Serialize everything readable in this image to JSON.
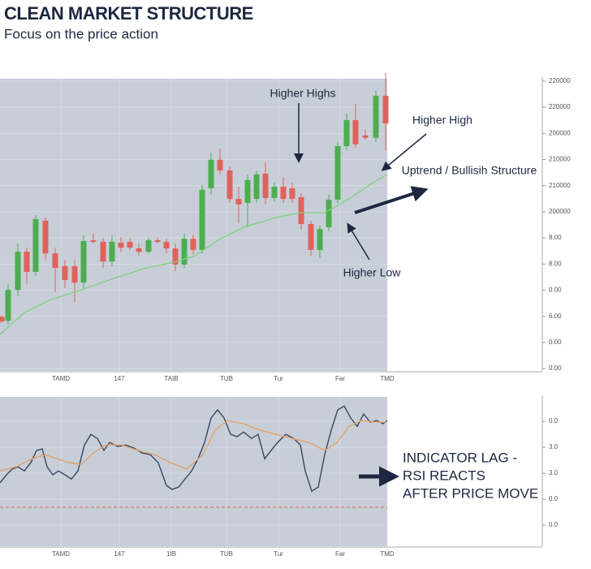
{
  "chart_data": [
    {
      "type": "candlestick",
      "title": "CLEAN MARKET STRUCTURE",
      "subtitle": "Focus on the price action",
      "annotations": [
        "Higher Highs",
        "Higher High",
        "Uptrend / Bullisih Structure",
        "Higher Low"
      ],
      "up_color": "#4cae4f",
      "down_color": "#e0625c",
      "x": [
        2,
        10,
        22,
        33,
        44,
        56,
        68,
        80,
        92,
        103,
        115,
        127,
        138,
        149,
        160,
        171,
        183,
        194,
        205,
        216,
        227,
        238,
        249,
        260,
        271,
        283,
        294,
        305,
        316,
        327,
        338,
        349,
        360,
        371,
        383,
        394,
        405,
        416,
        427,
        438,
        450,
        463,
        475
      ],
      "open": [
        1.99,
        1.83,
        3.01,
        4.47,
        3.7,
        5.66,
        4.41,
        3.92,
        3.92,
        3.29,
        4.91,
        4.85,
        4.1,
        4.82,
        4.85,
        4.6,
        4.47,
        4.91,
        4.85,
        4.6,
        3.98,
        4.97,
        4.54,
        6.9,
        7.99,
        7.58,
        6.49,
        6.34,
        6.49,
        7.46,
        6.53,
        6.96,
        6.9,
        6.56,
        5.53,
        4.54,
        5.41,
        6.46,
        8.51,
        9.51,
        8.92,
        8.83,
        10.44
      ],
      "high": [
        2.05,
        3.23,
        4.79,
        4.63,
        5.87,
        5.78,
        4.63,
        4.16,
        4.16,
        5.1,
        5.19,
        5.0,
        5.1,
        5.03,
        5.0,
        4.79,
        5.0,
        5.03,
        4.97,
        4.79,
        5.16,
        5.13,
        7.02,
        8.27,
        8.42,
        7.74,
        6.96,
        7.43,
        7.58,
        7.89,
        7.12,
        7.33,
        7.12,
        6.71,
        5.66,
        5.47,
        6.65,
        8.67,
        9.76,
        10.13,
        9.14,
        10.63,
        11.31
      ],
      "low": [
        1.74,
        1.68,
        2.77,
        3.23,
        3.54,
        4.16,
        2.92,
        3.08,
        2.55,
        3.08,
        4.79,
        3.85,
        3.92,
        4.47,
        4.54,
        4.32,
        4.41,
        4.79,
        4.41,
        3.73,
        3.85,
        4.38,
        4.41,
        6.65,
        7.43,
        6.34,
        5.56,
        5.41,
        6.34,
        6.28,
        6.4,
        6.34,
        6.34,
        5.34,
        4.32,
        4.23,
        5.25,
        6.34,
        8.36,
        8.45,
        8.76,
        8.67,
        8.36
      ],
      "close": [
        1.8,
        3.01,
        4.47,
        3.7,
        5.72,
        4.41,
        3.85,
        3.39,
        3.29,
        4.88,
        4.85,
        4.1,
        4.85,
        4.63,
        4.63,
        4.47,
        4.91,
        4.85,
        4.6,
        3.98,
        4.97,
        4.54,
        6.84,
        7.99,
        7.58,
        6.49,
        6.28,
        7.21,
        7.43,
        6.53,
        6.96,
        6.49,
        6.49,
        5.53,
        4.54,
        5.34,
        6.46,
        8.51,
        9.51,
        8.58,
        8.83,
        10.44,
        9.38
      ],
      "lines": [
        {
          "color": "#7fd07f",
          "x": [
            0,
            30,
            60,
            100,
            140,
            180,
            215,
            240,
            270,
            300,
            340,
            370,
            400,
            430,
            460,
            477
          ],
          "values": [
            1.31,
            2.14,
            2.61,
            3.01,
            3.45,
            3.85,
            4.07,
            4.32,
            4.94,
            5.41,
            5.78,
            5.97,
            5.97,
            6.49,
            7.12,
            7.43
          ]
        }
      ],
      "xlim": [
        0,
        477
      ],
      "ylim": [
        -0.09,
        11.09
      ],
      "xticks": [
        {
          "value": 75,
          "label": "TAMD"
        },
        147,
        {
          "value": 211,
          "label": "TAIB"
        },
        {
          "value": 279,
          "label": "TUB"
        },
        {
          "value": 343,
          "label": "Tur"
        },
        {
          "value": 419,
          "label": "Far"
        },
        {
          "value": 477,
          "label": "TMD"
        }
      ],
      "yticks": [
        {
          "value": 11,
          "label": "220000"
        },
        {
          "value": 10,
          "label": "220000"
        },
        {
          "value": 9,
          "label": "200000"
        },
        {
          "value": 8,
          "label": "210000"
        },
        {
          "value": 7,
          "label": "210000"
        },
        {
          "value": 6,
          "label": "200000"
        },
        {
          "value": 5,
          "label": "8.00"
        },
        {
          "value": 4,
          "label": "8.00"
        },
        {
          "value": 3,
          "label": "0.00"
        },
        {
          "value": 2,
          "label": "6.00"
        },
        {
          "value": 1,
          "label": "0.00"
        },
        {
          "value": 0,
          "label": "0.00"
        }
      ],
      "grid": true
    },
    {
      "type": "line",
      "annotation_lines": [
        "INDICATOR LAG -",
        "RSI REACTS",
        "AFTER PRICE MOVE"
      ],
      "series": [
        {
          "color": "#3b4662",
          "x": [
            0,
            8,
            15,
            22,
            30,
            38,
            45,
            52,
            58,
            65,
            72,
            80,
            88,
            96,
            104,
            112,
            120,
            128,
            135,
            145,
            155,
            165,
            175,
            185,
            195,
            205,
            212,
            220,
            228,
            236,
            244,
            252,
            260,
            268,
            276,
            284,
            292,
            300,
            310,
            318,
            326,
            334,
            342,
            352,
            362,
            370,
            376,
            384,
            392,
            400,
            408,
            416,
            424,
            432,
            440,
            448,
            456,
            464,
            472,
            477
          ],
          "values": [
            1.63,
            1.94,
            2.16,
            2.25,
            2.09,
            2.41,
            2.88,
            2.94,
            2.25,
            1.94,
            2.09,
            1.94,
            1.78,
            2.09,
            3.09,
            3.5,
            3.34,
            2.88,
            3.19,
            3.03,
            3.09,
            2.97,
            2.78,
            2.72,
            2.41,
            1.53,
            1.38,
            1.47,
            1.78,
            2.09,
            2.56,
            3.19,
            4.13,
            4.44,
            4.13,
            3.5,
            3.41,
            3.59,
            3.34,
            3.5,
            2.56,
            2.88,
            3.19,
            3.5,
            3.34,
            3.09,
            2.09,
            1.31,
            1.47,
            2.72,
            3.66,
            4.44,
            4.59,
            4.13,
            3.81,
            4.28,
            3.97,
            4.03,
            3.91,
            4.03
          ]
        },
        {
          "color": "#e2a36a",
          "x": [
            0,
            20,
            40,
            55,
            70,
            85,
            100,
            115,
            130,
            150,
            170,
            190,
            210,
            230,
            250,
            265,
            280,
            300,
            320,
            340,
            360,
            380,
            400,
            415,
            430,
            445,
            465,
            477
          ],
          "values": [
            2.09,
            2.25,
            2.56,
            2.72,
            2.56,
            2.41,
            2.34,
            2.78,
            3.09,
            3.09,
            2.88,
            2.72,
            2.41,
            2.16,
            2.72,
            3.66,
            4.03,
            3.91,
            3.66,
            3.5,
            3.34,
            3.19,
            2.88,
            3.19,
            3.81,
            4.03,
            3.97,
            3.97
          ]
        }
      ],
      "hline": {
        "value": 0.69,
        "color": "#e0604e"
      },
      "xlim": [
        0,
        477
      ],
      "ylim": [
        -0.81,
        4.94
      ],
      "xticks": [
        {
          "value": 75,
          "label": "TAMD"
        },
        147,
        {
          "value": 211,
          "label": "1IB"
        },
        {
          "value": 279,
          "label": "TUB"
        },
        {
          "value": 343,
          "label": "Tur"
        },
        {
          "value": 419,
          "label": "Far"
        },
        {
          "value": 477,
          "label": "TMD"
        }
      ],
      "yticks": [
        {
          "value": 4,
          "label": "0.0"
        },
        {
          "value": 3,
          "label": "3.0"
        },
        {
          "value": 2,
          "label": "3.0"
        },
        {
          "value": 1,
          "label": "0.0"
        },
        {
          "value": 0,
          "label": "0.0"
        }
      ],
      "grid": true
    }
  ]
}
